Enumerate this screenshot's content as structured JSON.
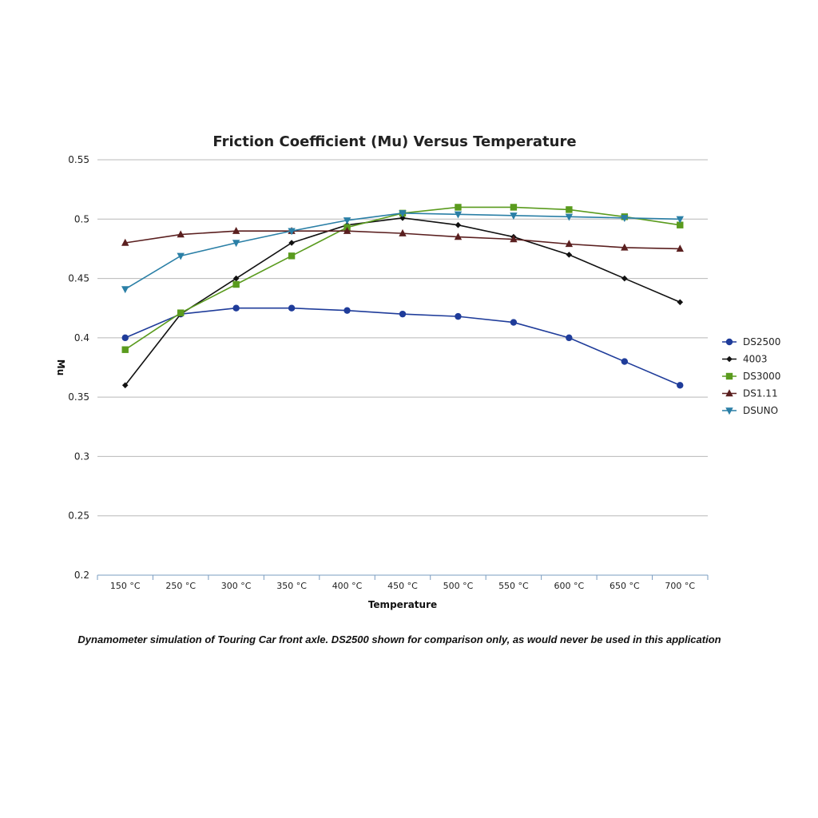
{
  "chart_data": {
    "type": "line",
    "title": "Friction Coefficient (Mu) Versus Temperature",
    "xlabel": "Temperature",
    "ylabel": "Mu",
    "categories": [
      "150 °C",
      "250 °C",
      "300 °C",
      "350 °C",
      "400 °C",
      "450 °C",
      "500 °C",
      "550 °C",
      "600 °C",
      "650 °C",
      "700 °C"
    ],
    "ylim": [
      0.2,
      0.55
    ],
    "yticks": [
      0.2,
      0.25,
      0.3,
      0.35,
      0.4,
      0.45,
      0.5,
      0.55
    ],
    "ytick_labels": [
      "0.2",
      "0.25",
      "0.3",
      "0.35",
      "0.4",
      "0.45",
      "0.5",
      "0.55"
    ],
    "grid": true,
    "legend_position": "right",
    "series": [
      {
        "name": "DS2500",
        "color": "#1f3c9a",
        "marker": "circle",
        "values": [
          0.4,
          0.42,
          0.425,
          0.425,
          0.423,
          0.42,
          0.418,
          0.413,
          0.4,
          0.38,
          0.36
        ]
      },
      {
        "name": "4003",
        "color": "#111111",
        "marker": "diamond",
        "values": [
          0.36,
          0.42,
          0.45,
          0.48,
          0.495,
          0.501,
          0.495,
          0.485,
          0.47,
          0.45,
          0.43
        ]
      },
      {
        "name": "DS3000",
        "color": "#5a9b1e",
        "marker": "square",
        "values": [
          0.39,
          0.421,
          0.445,
          0.469,
          0.493,
          0.505,
          0.51,
          0.51,
          0.508,
          0.502,
          0.495
        ]
      },
      {
        "name": "DS1.11",
        "color": "#5a1f1f",
        "marker": "triangle-up",
        "values": [
          0.48,
          0.487,
          0.49,
          0.49,
          0.49,
          0.488,
          0.485,
          0.483,
          0.479,
          0.476,
          0.475
        ]
      },
      {
        "name": "DSUNO",
        "color": "#2a7fa6",
        "marker": "triangle-down",
        "values": [
          0.441,
          0.469,
          0.48,
          0.49,
          0.499,
          0.505,
          0.504,
          0.503,
          0.502,
          0.501,
          0.5
        ]
      }
    ]
  },
  "caption": "Dynamometer simulation of Touring Car front axle. DS2500 shown for comparison only, as would never be used in this application"
}
